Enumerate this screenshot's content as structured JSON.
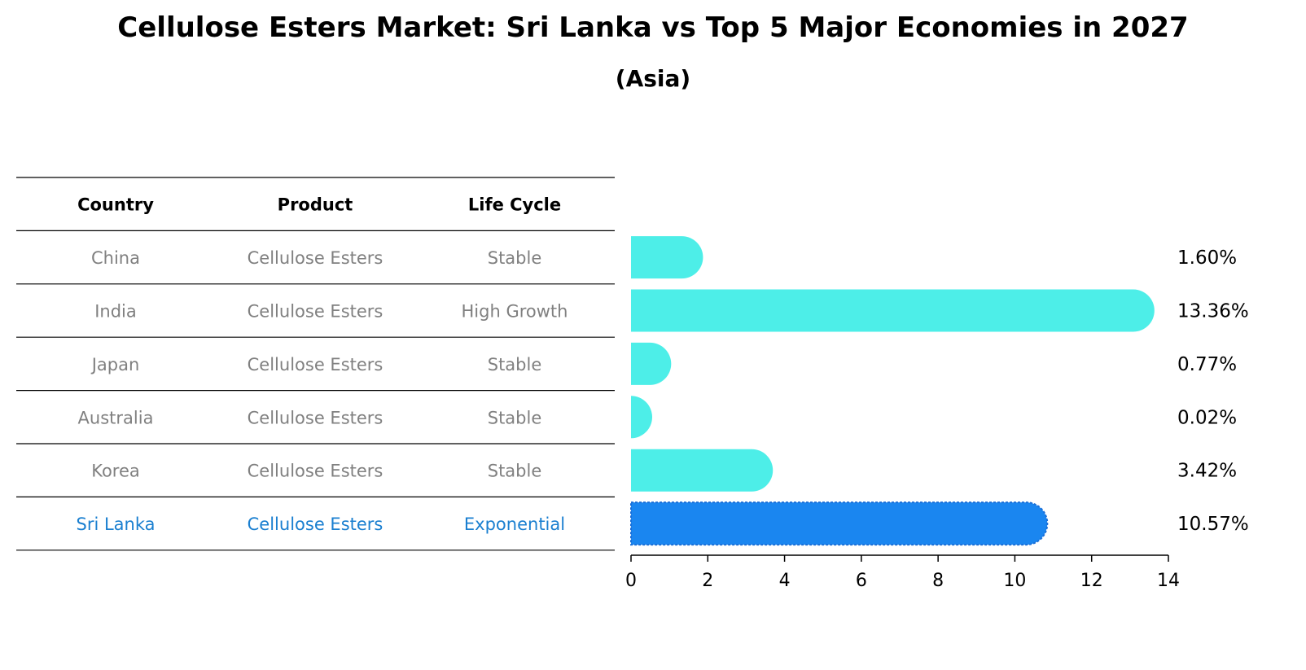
{
  "title": "Cellulose Esters Market: Sri Lanka vs Top 5 Major Economies in 2027",
  "subtitle": "(Asia)",
  "colors": {
    "bar": "#4deee8",
    "highlight_bar": "#1a86f0",
    "row_text": "#808080",
    "highlight_text": "#1a7fd0"
  },
  "table": {
    "headers": [
      "Country",
      "Product",
      "Life Cycle"
    ],
    "rows": [
      {
        "country": "China",
        "product": "Cellulose Esters",
        "life_cycle": "Stable"
      },
      {
        "country": "India",
        "product": "Cellulose Esters",
        "life_cycle": "High Growth"
      },
      {
        "country": "Japan",
        "product": "Cellulose Esters",
        "life_cycle": "Stable"
      },
      {
        "country": "Australia",
        "product": "Cellulose Esters",
        "life_cycle": "Stable"
      },
      {
        "country": "Korea",
        "product": "Cellulose Esters",
        "life_cycle": "Stable"
      },
      {
        "country": "Sri Lanka",
        "product": "Cellulose Esters",
        "life_cycle": "Exponential",
        "highlight": true
      }
    ]
  },
  "chart_data": {
    "type": "bar",
    "orientation": "horizontal",
    "title": "Cellulose Esters Market: Sri Lanka vs Top 5 Major Economies in 2027",
    "subtitle": "(Asia)",
    "categories": [
      "China",
      "India",
      "Japan",
      "Australia",
      "Korea",
      "Sri Lanka"
    ],
    "values": [
      1.6,
      13.36,
      0.77,
      0.02,
      3.42,
      10.57
    ],
    "value_labels": [
      "1.60%",
      "13.36%",
      "0.77%",
      "0.02%",
      "3.42%",
      "10.57%"
    ],
    "highlight_category": "Sri Lanka",
    "xlim": [
      0,
      14
    ],
    "xticks": [
      0,
      2,
      4,
      6,
      8,
      10,
      12,
      14
    ],
    "xlabel": "",
    "ylabel": "",
    "grid": false
  }
}
